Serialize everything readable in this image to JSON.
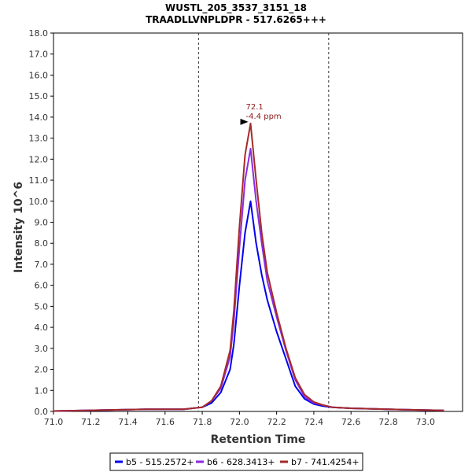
{
  "chart_data": {
    "type": "line",
    "title": "WUSTL_205_3537_3151_18",
    "subtitle": "TRAADLLVNPLDPR - 517.6265+++",
    "xlabel": "Retention Time",
    "ylabel": "Intensity 10^6",
    "xlim": [
      71.0,
      73.2
    ],
    "ylim": [
      0,
      18
    ],
    "x_ticks": [
      "71.0",
      "71.2",
      "71.4",
      "71.6",
      "71.8",
      "72.0",
      "72.2",
      "72.4",
      "72.6",
      "72.8",
      "73.0"
    ],
    "y_ticks": [
      "0.0",
      "1.0",
      "2.0",
      "3.0",
      "4.0",
      "5.0",
      "6.0",
      "7.0",
      "8.0",
      "9.0",
      "10.0",
      "11.0",
      "12.0",
      "13.0",
      "14.0",
      "15.0",
      "16.0",
      "17.0",
      "18.0"
    ],
    "vlines": [
      71.78,
      72.48
    ],
    "grid": false,
    "legend_position": "bottom",
    "series": [
      {
        "name": "b5 - 515.2572+",
        "color": "#0000ee",
        "x": [
          71.0,
          71.5,
          71.7,
          71.8,
          71.85,
          71.9,
          71.95,
          71.97,
          72.0,
          72.03,
          72.06,
          72.09,
          72.12,
          72.15,
          72.2,
          72.25,
          72.3,
          72.35,
          72.4,
          72.45,
          72.5,
          72.6,
          72.8,
          73.1
        ],
        "y": [
          0.02,
          0.1,
          0.1,
          0.2,
          0.4,
          0.9,
          2.0,
          3.2,
          6.0,
          8.5,
          10.0,
          8.0,
          6.5,
          5.3,
          3.8,
          2.5,
          1.2,
          0.6,
          0.35,
          0.25,
          0.2,
          0.15,
          0.1,
          0.05
        ]
      },
      {
        "name": "b6 - 628.3413+",
        "color": "#8a2be2",
        "x": [
          71.0,
          71.5,
          71.7,
          71.8,
          71.85,
          71.9,
          71.95,
          71.97,
          72.0,
          72.03,
          72.06,
          72.09,
          72.12,
          72.15,
          72.2,
          72.25,
          72.3,
          72.35,
          72.4,
          72.45,
          72.5,
          72.6,
          72.8,
          73.1
        ],
        "y": [
          0.02,
          0.1,
          0.1,
          0.2,
          0.5,
          1.1,
          2.6,
          4.3,
          7.8,
          11.0,
          12.5,
          10.0,
          8.0,
          6.2,
          4.5,
          2.9,
          1.5,
          0.7,
          0.4,
          0.3,
          0.2,
          0.15,
          0.1,
          0.05
        ]
      },
      {
        "name": "b7 - 741.4254+",
        "color": "#a52a2a",
        "x": [
          71.0,
          71.5,
          71.7,
          71.8,
          71.85,
          71.9,
          71.95,
          71.97,
          72.0,
          72.03,
          72.06,
          72.09,
          72.12,
          72.15,
          72.2,
          72.25,
          72.3,
          72.35,
          72.4,
          72.45,
          72.5,
          72.6,
          72.8,
          73.1
        ],
        "y": [
          0.02,
          0.1,
          0.1,
          0.2,
          0.5,
          1.2,
          2.9,
          4.8,
          8.8,
          12.2,
          13.7,
          11.0,
          8.5,
          6.6,
          4.7,
          3.0,
          1.6,
          0.8,
          0.45,
          0.3,
          0.2,
          0.15,
          0.1,
          0.05
        ]
      }
    ],
    "annotation": {
      "x": 72.06,
      "y": 13.7,
      "line1": "72.1",
      "line2": "-4.4 ppm",
      "color": "#8b1a1a"
    }
  }
}
